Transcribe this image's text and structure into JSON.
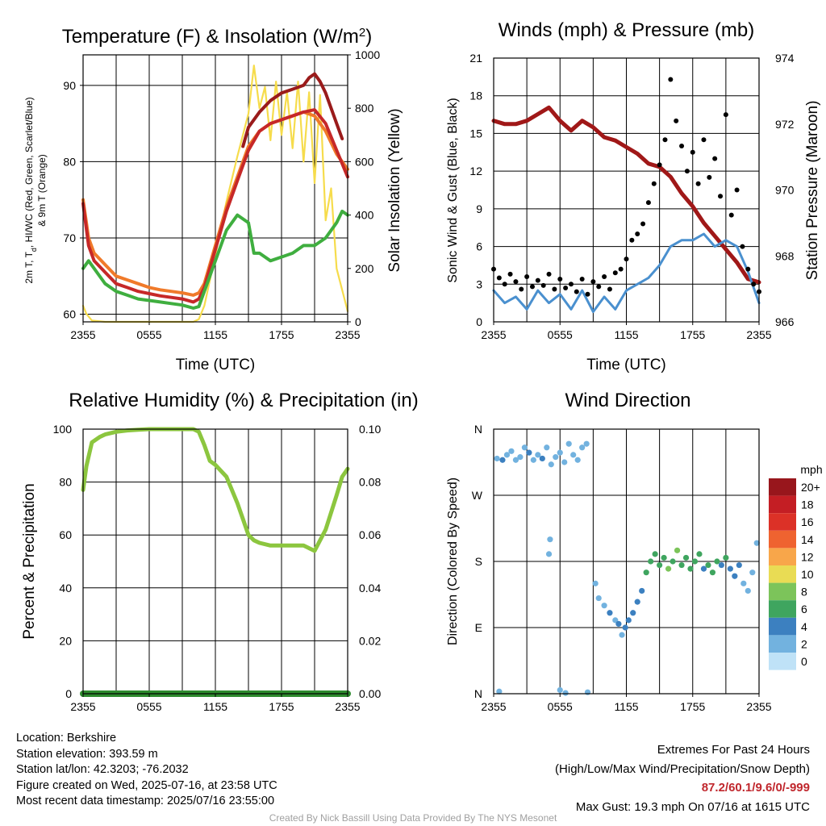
{
  "colors": {
    "temperature": "#c62828",
    "dewpoint": "#3fae3f",
    "heat_index": "#9a1b1b",
    "temp_9m": "#f07a2a",
    "insolation": "#f6dc4c",
    "wind": "#4a90cf",
    "gust": "#000000",
    "pressure": "#a01818",
    "rh": "#8cc63f",
    "precip": "#2e8b2e"
  },
  "chart_data": [
    {
      "id": "temperature",
      "type": "line",
      "title": "Temperature (F) & Insolation (W/m",
      "title_sup": "2",
      "title_end": ")",
      "xlabel": "Time (UTC)",
      "ylabel_line1": "2m T, T",
      "ylabel_sub": "d",
      "ylabel_line1_end": ", HI/WC (Red, Green, Scarlet/Blue)",
      "ylabel_line2": "& 9m T (Orange)",
      "ylabel_right": "Solar Insolation (Yellow)",
      "x_ticks": [
        "2355",
        "0555",
        "1155",
        "1755",
        "2355"
      ],
      "xlim": [
        0,
        24
      ],
      "ylim": [
        59,
        94
      ],
      "y_ticks": [
        60,
        70,
        80,
        90
      ],
      "y2lim": [
        0,
        1000
      ],
      "y2_ticks": [
        0,
        200,
        400,
        600,
        800,
        1000
      ],
      "series": [
        {
          "key": "insolation",
          "axis": "right",
          "x": [
            0,
            0.3,
            0.8,
            2,
            4,
            6,
            8,
            9,
            10,
            10.5,
            11,
            12,
            13,
            14,
            15,
            15.5,
            16,
            16.5,
            17,
            17.5,
            18,
            18.5,
            19,
            19.5,
            20,
            20.5,
            21,
            21.5,
            22,
            22.5,
            23,
            24
          ],
          "y": [
            60,
            30,
            5,
            0,
            0,
            0,
            0,
            0,
            0,
            10,
            60,
            250,
            450,
            620,
            780,
            960,
            800,
            880,
            680,
            900,
            700,
            860,
            650,
            900,
            600,
            860,
            520,
            850,
            380,
            500,
            200,
            40
          ]
        },
        {
          "key": "temp_9m",
          "axis": "left",
          "x": [
            0,
            0.5,
            1,
            2,
            3,
            4,
            5,
            6,
            7,
            8,
            9,
            10,
            10.5,
            11,
            12,
            13,
            14,
            15,
            16,
            17,
            18,
            19,
            20,
            21,
            22,
            23,
            24
          ],
          "y": [
            75,
            70,
            68,
            66.5,
            65,
            64.5,
            64,
            63.5,
            63.2,
            63,
            62.8,
            62.5,
            62.8,
            64,
            69,
            74,
            78,
            82,
            84,
            85,
            85.5,
            86,
            86.5,
            86,
            84,
            81,
            79
          ]
        },
        {
          "key": "temperature",
          "axis": "left",
          "x": [
            0,
            0.5,
            1,
            2,
            3,
            4,
            5,
            6,
            7,
            8,
            9,
            10,
            10.5,
            11,
            12,
            13,
            14,
            15,
            16,
            17,
            18,
            19,
            20,
            21,
            22,
            23,
            24
          ],
          "y": [
            74.5,
            69,
            67,
            65.5,
            64,
            63.5,
            63,
            62.7,
            62.4,
            62.2,
            62,
            61.6,
            62,
            63.5,
            68.5,
            73.5,
            77.5,
            81.5,
            84,
            85,
            85.5,
            86,
            86.5,
            86.8,
            85,
            81.5,
            78
          ]
        },
        {
          "key": "heat_index",
          "axis": "left",
          "x": [
            14.5,
            15,
            16,
            17,
            18,
            19,
            20,
            20.5,
            21,
            21.5,
            22,
            22.5,
            23,
            23.5
          ],
          "y": [
            82,
            84.5,
            86.5,
            88,
            89,
            89.5,
            90,
            91,
            91.5,
            90.5,
            89,
            87,
            85,
            83
          ]
        },
        {
          "key": "dewpoint",
          "axis": "left",
          "x": [
            0,
            0.5,
            1,
            2,
            3,
            4,
            5,
            6,
            7,
            8,
            9,
            10,
            10.5,
            11,
            12,
            13,
            14,
            15,
            15.5,
            16,
            17,
            18,
            19,
            20,
            21,
            22,
            23,
            23.5,
            24
          ],
          "y": [
            66,
            67,
            66,
            64,
            63,
            62.5,
            62,
            61.8,
            61.6,
            61.4,
            61.2,
            60.8,
            61,
            63,
            67,
            71,
            73,
            72,
            68,
            68,
            67,
            67.5,
            68,
            69,
            69,
            70,
            72,
            73.5,
            73
          ]
        }
      ]
    },
    {
      "id": "winds",
      "type": "line",
      "title": "Winds (mph) & Pressure (mb)",
      "xlabel": "Time (UTC)",
      "ylabel": "Sonic Wind & Gust (Blue, Black)",
      "ylabel_right": "Station Pressure (Maroon)",
      "x_ticks": [
        "2355",
        "0555",
        "1155",
        "1755",
        "2355"
      ],
      "xlim": [
        0,
        24
      ],
      "ylim": [
        0,
        21
      ],
      "y_ticks": [
        0,
        3,
        6,
        9,
        12,
        15,
        18,
        21
      ],
      "y2lim": [
        966,
        974
      ],
      "y2_ticks": [
        966,
        968,
        970,
        972,
        974
      ],
      "series": [
        {
          "key": "pressure",
          "axis": "right",
          "x": [
            0,
            1,
            2,
            3,
            4,
            5,
            6,
            7,
            8,
            9,
            10,
            11,
            12,
            13,
            14,
            15,
            16,
            17,
            18,
            19,
            20,
            21,
            22,
            23,
            24
          ],
          "y": [
            972.1,
            972.0,
            972.0,
            972.1,
            972.3,
            972.5,
            972.1,
            971.8,
            972.1,
            971.9,
            971.6,
            971.5,
            971.3,
            971.1,
            970.8,
            970.7,
            970.4,
            969.9,
            969.5,
            969.0,
            968.6,
            968.2,
            967.8,
            967.3,
            967.2
          ]
        },
        {
          "key": "wind",
          "axis": "left",
          "x": [
            0,
            1,
            2,
            3,
            4,
            5,
            6,
            7,
            8,
            9,
            10,
            11,
            12,
            13,
            14,
            15,
            16,
            17,
            18,
            19,
            20,
            21,
            22,
            23,
            24
          ],
          "y": [
            2.5,
            1.5,
            2.0,
            1.0,
            2.5,
            1.5,
            2.2,
            1.0,
            2.5,
            0.8,
            2.0,
            1.0,
            2.5,
            3.0,
            3.5,
            4.5,
            6.0,
            6.5,
            6.5,
            7.0,
            6.0,
            6.5,
            6.0,
            4.0,
            1.5
          ]
        },
        {
          "key": "gust",
          "axis": "left",
          "type": "scatter",
          "x": [
            0,
            0.5,
            1,
            1.5,
            2,
            2.5,
            3,
            3.5,
            4,
            4.5,
            5,
            5.5,
            6,
            6.5,
            7,
            7.5,
            8,
            8.5,
            9,
            9.5,
            10,
            10.5,
            11,
            11.5,
            12,
            12.5,
            13,
            13.5,
            14,
            14.5,
            15,
            15.5,
            16,
            16.5,
            17,
            17.5,
            18,
            18.5,
            19,
            19.5,
            20,
            20.5,
            21,
            21.5,
            22,
            22.5,
            23,
            23.5,
            24
          ],
          "y": [
            4.2,
            3.5,
            3.0,
            3.8,
            3.2,
            2.6,
            3.6,
            2.8,
            3.3,
            2.9,
            3.8,
            2.6,
            3.4,
            2.7,
            3.0,
            2.4,
            3.4,
            2.2,
            3.2,
            2.8,
            3.6,
            2.6,
            3.9,
            4.2,
            5.0,
            6.5,
            7.0,
            7.8,
            9.5,
            11.0,
            12.5,
            14.5,
            19.3,
            16.0,
            14.0,
            12.0,
            13.5,
            11.0,
            14.5,
            11.5,
            13.0,
            10.0,
            16.5,
            8.5,
            10.5,
            6.0,
            4.2,
            3.0,
            2.4
          ]
        }
      ]
    },
    {
      "id": "humidity",
      "type": "line",
      "title": "Relative Humidity (%) & Precipitation (in)",
      "ylabel": "Percent & Precipitation",
      "x_ticks": [
        "2355",
        "0555",
        "1155",
        "1755",
        "2355"
      ],
      "xlim": [
        0,
        24
      ],
      "ylim": [
        0,
        100
      ],
      "y_ticks": [
        0,
        20,
        40,
        60,
        80,
        100
      ],
      "y2lim": [
        0,
        0.1
      ],
      "y2_ticks": [
        "0.00",
        "0.02",
        "0.04",
        "0.06",
        "0.08",
        "0.10"
      ],
      "series": [
        {
          "key": "rh",
          "axis": "left",
          "x": [
            0,
            0.3,
            0.8,
            1.5,
            2,
            3,
            4,
            5,
            6,
            7,
            8,
            9,
            10,
            10.5,
            11,
            11.5,
            12,
            13,
            14,
            14.5,
            15,
            15.5,
            16,
            17,
            18,
            19,
            20,
            20.5,
            21,
            22,
            23,
            23.5,
            24
          ],
          "y": [
            77,
            86,
            95,
            97,
            98,
            99,
            99.5,
            99.8,
            100,
            100,
            100,
            100,
            100,
            99,
            94,
            88,
            86.5,
            82,
            72,
            66,
            60,
            58,
            57,
            56,
            56,
            56,
            56,
            55,
            54,
            62,
            75,
            82,
            85
          ]
        },
        {
          "key": "precip",
          "axis": "right",
          "x": [
            0,
            24
          ],
          "y": [
            0,
            0
          ]
        }
      ]
    },
    {
      "id": "direction",
      "type": "scatter",
      "title": "Wind Direction",
      "ylabel": "Direction (Colored By Speed)",
      "x_ticks": [
        "2355",
        "0555",
        "1155",
        "1755",
        "2355"
      ],
      "xlim": [
        0,
        24
      ],
      "ylim": [
        0,
        360
      ],
      "y_ticks": [
        "N",
        "E",
        "S",
        "W",
        "N"
      ],
      "legend": {
        "title": "mph",
        "labels": [
          "20+",
          "18",
          "16",
          "14",
          "12",
          "10",
          "8",
          "6",
          "4",
          "2",
          "0"
        ],
        "colors": [
          "#98161c",
          "#c41e24",
          "#dc3127",
          "#ef6330",
          "#f8a64a",
          "#e9dc54",
          "#7cc45a",
          "#3fa55f",
          "#3c80c0",
          "#72b2df",
          "#bfe2f7"
        ]
      },
      "points": [
        {
          "x": 0.3,
          "y": 320,
          "s": 2
        },
        {
          "x": 0.8,
          "y": 318,
          "s": 3
        },
        {
          "x": 1.2,
          "y": 325,
          "s": 2
        },
        {
          "x": 1.6,
          "y": 330,
          "s": 1
        },
        {
          "x": 2.0,
          "y": 318,
          "s": 2
        },
        {
          "x": 2.4,
          "y": 322,
          "s": 1
        },
        {
          "x": 2.8,
          "y": 335,
          "s": 2
        },
        {
          "x": 3.2,
          "y": 328,
          "s": 3
        },
        {
          "x": 3.6,
          "y": 318,
          "s": 2
        },
        {
          "x": 4.0,
          "y": 325,
          "s": 2
        },
        {
          "x": 4.4,
          "y": 320,
          "s": 3
        },
        {
          "x": 4.8,
          "y": 335,
          "s": 1
        },
        {
          "x": 5.2,
          "y": 312,
          "s": 1
        },
        {
          "x": 5.6,
          "y": 322,
          "s": 2
        },
        {
          "x": 6.0,
          "y": 328,
          "s": 1
        },
        {
          "x": 6.4,
          "y": 315,
          "s": 2
        },
        {
          "x": 6.8,
          "y": 340,
          "s": 2
        },
        {
          "x": 7.2,
          "y": 325,
          "s": 1
        },
        {
          "x": 7.6,
          "y": 318,
          "s": 2
        },
        {
          "x": 8.0,
          "y": 335,
          "s": 1
        },
        {
          "x": 8.4,
          "y": 340,
          "s": 1
        },
        {
          "x": 0.5,
          "y": 3,
          "s": 1
        },
        {
          "x": 6.0,
          "y": 5,
          "s": 1
        },
        {
          "x": 6.5,
          "y": 1,
          "s": 1
        },
        {
          "x": 8.5,
          "y": 2,
          "s": 1
        },
        {
          "x": 5.0,
          "y": 190,
          "s": 1
        },
        {
          "x": 5.1,
          "y": 210,
          "s": 1
        },
        {
          "x": 9.2,
          "y": 150,
          "s": 1
        },
        {
          "x": 9.5,
          "y": 130,
          "s": 1
        },
        {
          "x": 10.0,
          "y": 120,
          "s": 2
        },
        {
          "x": 10.5,
          "y": 110,
          "s": 3
        },
        {
          "x": 11.0,
          "y": 100,
          "s": 2
        },
        {
          "x": 11.3,
          "y": 95,
          "s": 3
        },
        {
          "x": 11.6,
          "y": 80,
          "s": 1
        },
        {
          "x": 11.9,
          "y": 90,
          "s": 4
        },
        {
          "x": 12.2,
          "y": 100,
          "s": 4
        },
        {
          "x": 12.6,
          "y": 110,
          "s": 4
        },
        {
          "x": 13.0,
          "y": 125,
          "s": 3
        },
        {
          "x": 13.4,
          "y": 140,
          "s": 4
        },
        {
          "x": 13.8,
          "y": 165,
          "s": 5
        },
        {
          "x": 14.2,
          "y": 180,
          "s": 6
        },
        {
          "x": 14.6,
          "y": 190,
          "s": 6
        },
        {
          "x": 15.0,
          "y": 175,
          "s": 5
        },
        {
          "x": 15.4,
          "y": 185,
          "s": 6
        },
        {
          "x": 15.8,
          "y": 170,
          "s": 8
        },
        {
          "x": 16.2,
          "y": 180,
          "s": 6
        },
        {
          "x": 16.6,
          "y": 195,
          "s": 7
        },
        {
          "x": 17.0,
          "y": 175,
          "s": 6
        },
        {
          "x": 17.4,
          "y": 185,
          "s": 5
        },
        {
          "x": 17.8,
          "y": 170,
          "s": 6
        },
        {
          "x": 18.2,
          "y": 180,
          "s": 5
        },
        {
          "x": 18.6,
          "y": 190,
          "s": 6
        },
        {
          "x": 19.0,
          "y": 170,
          "s": 4
        },
        {
          "x": 19.4,
          "y": 175,
          "s": 6
        },
        {
          "x": 19.8,
          "y": 165,
          "s": 5
        },
        {
          "x": 20.2,
          "y": 180,
          "s": 6
        },
        {
          "x": 20.6,
          "y": 175,
          "s": 4
        },
        {
          "x": 21.0,
          "y": 185,
          "s": 5
        },
        {
          "x": 21.4,
          "y": 170,
          "s": 3
        },
        {
          "x": 21.8,
          "y": 160,
          "s": 4
        },
        {
          "x": 22.2,
          "y": 175,
          "s": 3
        },
        {
          "x": 22.6,
          "y": 150,
          "s": 2
        },
        {
          "x": 23.0,
          "y": 140,
          "s": 1
        },
        {
          "x": 23.4,
          "y": 165,
          "s": 2
        },
        {
          "x": 23.8,
          "y": 205,
          "s": 1
        }
      ]
    }
  ],
  "info": {
    "location": "Location: Berkshire",
    "elevation": "Station elevation: 393.59 m",
    "latlon": "Station lat/lon: 42.3203; -76.2032",
    "created": "Figure created on Wed, 2025-07-16, at 23:58 UTC",
    "recent": "Most recent data timestamp: 2025/07/16 23:55:00"
  },
  "extremes": {
    "title": "Extremes For Past 24 Hours",
    "subtitle": "(High/Low/Max Wind/Precipitation/Snow Depth)",
    "values": "87.2/60.1/9.6/0/-999",
    "max_gust": "Max Gust: 19.3 mph On 07/16 at 1615 UTC"
  },
  "credit": "Created By Nick Bassill Using Data Provided By The NYS Mesonet"
}
